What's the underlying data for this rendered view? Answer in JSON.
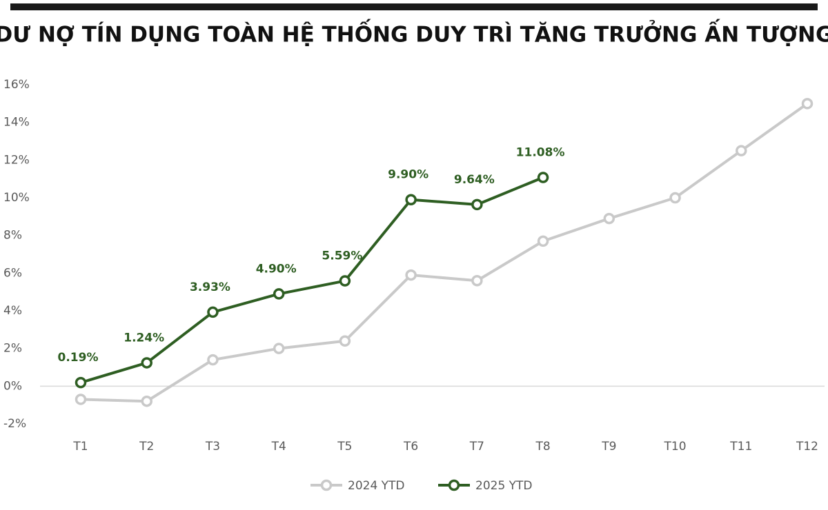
{
  "chart_data": {
    "type": "line",
    "title": "DƯ NỢ TÍN DỤNG TOÀN HỆ THỐNG DUY TRÌ TĂNG TRƯỞNG ẤN TƯỢNG",
    "categories": [
      "T1",
      "T2",
      "T3",
      "T4",
      "T5",
      "T6",
      "T7",
      "T8",
      "T9",
      "T10",
      "T11",
      "T12"
    ],
    "series": [
      {
        "name": "2024 YTD",
        "color": "#c9c9c9",
        "values": [
          -0.7,
          -0.8,
          1.4,
          2.0,
          2.4,
          5.9,
          5.6,
          7.7,
          8.9,
          10.0,
          12.5,
          15.0
        ]
      },
      {
        "name": "2025 YTD",
        "color": "#2e5e22",
        "values": [
          0.19,
          1.24,
          3.93,
          4.9,
          5.59,
          9.9,
          9.64,
          11.08,
          null,
          null,
          null,
          null
        ],
        "value_labels": [
          "0.19%",
          "1.24%",
          "3.93%",
          "4.90%",
          "5.59%",
          "9.90%",
          "9.64%",
          "11.08%",
          null,
          null,
          null,
          null
        ]
      }
    ],
    "ylim": [
      -2,
      16
    ],
    "yticks": [
      {
        "value": -2,
        "label": "-2%"
      },
      {
        "value": 0,
        "label": "0%"
      },
      {
        "value": 2,
        "label": "2%"
      },
      {
        "value": 4,
        "label": "4%"
      },
      {
        "value": 6,
        "label": "6%"
      },
      {
        "value": 8,
        "label": "8%"
      },
      {
        "value": 10,
        "label": "10%"
      },
      {
        "value": 12,
        "label": "12%"
      },
      {
        "value": 14,
        "label": "14%"
      },
      {
        "value": 16,
        "label": "16%"
      }
    ],
    "legend": "bottom"
  }
}
